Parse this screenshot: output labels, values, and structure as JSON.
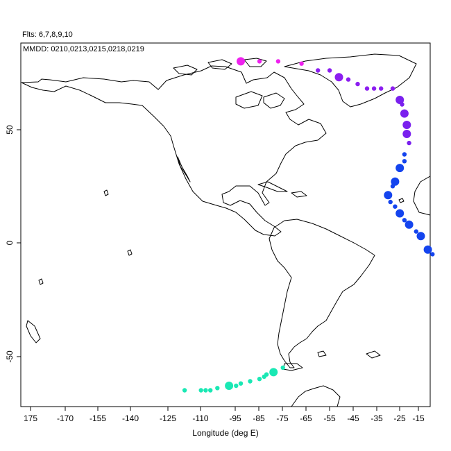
{
  "header": {
    "flights": "Flts: 6,7,8,9,10",
    "dates": "MMDD: 0210,0213,0215,0218,0219"
  },
  "axes": {
    "xlabel": "Longitude (deg E)",
    "x_ticks": [
      "175",
      "-170",
      "-155",
      "-140",
      "-125",
      "-110",
      "-95",
      "-85",
      "-75",
      "-65",
      "-55",
      "-45",
      "-35",
      "-25",
      "-15"
    ],
    "y_ticks": [
      "50",
      "0",
      "-50"
    ]
  },
  "colors": {
    "flight_6": "#ee22ee",
    "flight_7": "#8c1ef0",
    "flight_8": "#7a20ee",
    "flight_9": "#1444ee",
    "flight_10": "#1ae8b4",
    "coast": "#000000"
  },
  "chart_data": {
    "type": "scatter",
    "title": "",
    "xlabel": "Longitude (deg E)",
    "ylabel": "",
    "ylim": [
      -72,
      88
    ],
    "grid": false,
    "series": [
      {
        "name": "6",
        "color": "#ee22ee",
        "points": [
          {
            "lon": -95,
            "lat": 80,
            "s": 1
          },
          {
            "lon": -87,
            "lat": 80,
            "s": 0
          },
          {
            "lon": -79,
            "lat": 80,
            "s": 0
          },
          {
            "lon": -69,
            "lat": 79,
            "s": 0
          }
        ]
      },
      {
        "name": "7",
        "color": "#8c1ef0",
        "points": [
          {
            "lon": -62,
            "lat": 76,
            "s": 0
          },
          {
            "lon": -57,
            "lat": 76,
            "s": 0
          },
          {
            "lon": -53,
            "lat": 73,
            "s": 1
          },
          {
            "lon": -49,
            "lat": 72,
            "s": 0
          },
          {
            "lon": -45,
            "lat": 70,
            "s": 0
          },
          {
            "lon": -41,
            "lat": 68,
            "s": 0
          },
          {
            "lon": -38,
            "lat": 68,
            "s": 0
          },
          {
            "lon": -35,
            "lat": 68,
            "s": 0
          },
          {
            "lon": -30,
            "lat": 68,
            "s": 0
          }
        ]
      },
      {
        "name": "8",
        "color": "#7a20ee",
        "points": [
          {
            "lon": -27,
            "lat": 63,
            "s": 1
          },
          {
            "lon": -26,
            "lat": 61,
            "s": 0
          },
          {
            "lon": -25,
            "lat": 57,
            "s": 1
          },
          {
            "lon": -24,
            "lat": 52,
            "s": 1
          },
          {
            "lon": -24,
            "lat": 48,
            "s": 1
          },
          {
            "lon": -23,
            "lat": 44,
            "s": 0
          }
        ]
      },
      {
        "name": "9",
        "color": "#1444ee",
        "points": [
          {
            "lon": -25,
            "lat": 39,
            "s": 0
          },
          {
            "lon": -25,
            "lat": 36,
            "s": 0
          },
          {
            "lon": -27,
            "lat": 33,
            "s": 1
          },
          {
            "lon": -29,
            "lat": 27,
            "s": 1
          },
          {
            "lon": -30,
            "lat": 25,
            "s": 0
          },
          {
            "lon": -32,
            "lat": 21,
            "s": 1
          },
          {
            "lon": -31,
            "lat": 18,
            "s": 0
          },
          {
            "lon": -29,
            "lat": 16,
            "s": 0
          },
          {
            "lon": -27,
            "lat": 13,
            "s": 1
          },
          {
            "lon": -25,
            "lat": 10,
            "s": 0
          },
          {
            "lon": -23,
            "lat": 8,
            "s": 1
          },
          {
            "lon": -20,
            "lat": 5,
            "s": 0
          },
          {
            "lon": -18,
            "lat": 3,
            "s": 1
          },
          {
            "lon": -15,
            "lat": -3,
            "s": 1
          },
          {
            "lon": -13,
            "lat": -5,
            "s": 0
          }
        ]
      },
      {
        "name": "10",
        "color": "#1ae8b4",
        "points": [
          {
            "lon": -119,
            "lat": -65,
            "s": 0
          },
          {
            "lon": -112,
            "lat": -65,
            "s": 0
          },
          {
            "lon": -110,
            "lat": -65,
            "s": 0
          },
          {
            "lon": -108,
            "lat": -65,
            "s": 0
          },
          {
            "lon": -105,
            "lat": -64,
            "s": 0
          },
          {
            "lon": -100,
            "lat": -63,
            "s": 1
          },
          {
            "lon": -97,
            "lat": -63,
            "s": 0
          },
          {
            "lon": -95,
            "lat": -62,
            "s": 0
          },
          {
            "lon": -91,
            "lat": -61,
            "s": 0
          },
          {
            "lon": -87,
            "lat": -60,
            "s": 0
          },
          {
            "lon": -85,
            "lat": -59,
            "s": 0
          },
          {
            "lon": -84,
            "lat": -58,
            "s": 0
          },
          {
            "lon": -81,
            "lat": -57,
            "s": 1
          },
          {
            "lon": -77,
            "lat": -55,
            "s": 0
          }
        ]
      }
    ]
  }
}
